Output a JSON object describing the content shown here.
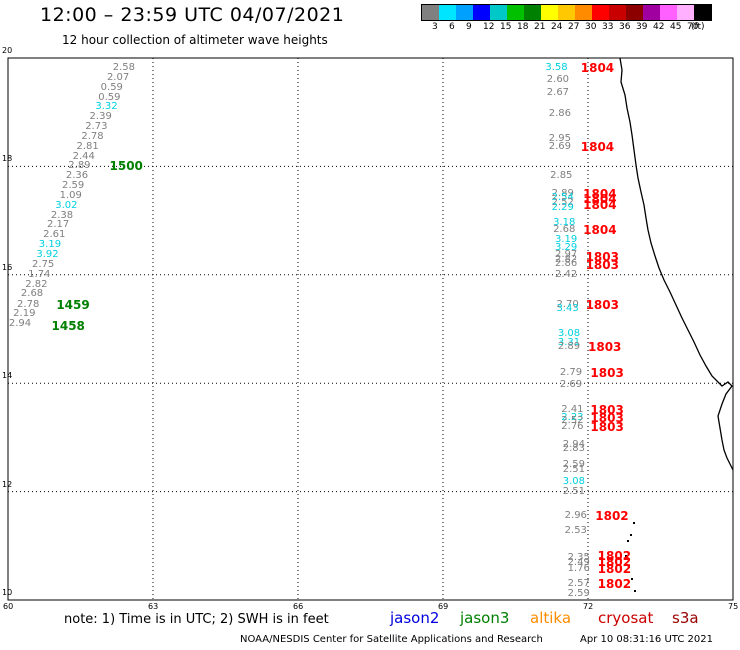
{
  "header": {
    "title": "12:00 – 23:59 UTC 04/07/2021",
    "subtitle": "12 hour collection of altimeter wave heights"
  },
  "legend": {
    "colors": [
      "#808080",
      "#00e5ff",
      "#00a0ff",
      "#0000ff",
      "#00c8c8",
      "#00c000",
      "#008000",
      "#ffff00",
      "#ffc800",
      "#ff8c00",
      "#ff0000",
      "#c80000",
      "#8c0000",
      "#a000a0",
      "#ff60ff",
      "#ffb0ff",
      "#000000"
    ],
    "labels": [
      "3",
      "6",
      "9",
      "12",
      "15",
      "18",
      "21",
      "24",
      "27",
      "30",
      "33",
      "36",
      "39",
      "42",
      "45",
      "70",
      "(ft)"
    ]
  },
  "axes": {
    "x_ticks": [
      "60",
      "63",
      "66",
      "69",
      "72",
      "75"
    ],
    "y_ticks": [
      "10",
      "12",
      "14",
      "16",
      "18",
      "20"
    ]
  },
  "chart_data": {
    "type": "scatter",
    "xlim": [
      60,
      75
    ],
    "ylim": [
      10,
      20
    ],
    "left_track": [
      {
        "x": 62.25,
        "y": 19.82,
        "v": "2.58",
        "c": "#808080"
      },
      {
        "x": 62.13,
        "y": 19.64,
        "v": "2.07",
        "c": "#808080"
      },
      {
        "x": 62.0,
        "y": 19.45,
        "v": "0.59",
        "c": "#808080"
      },
      {
        "x": 61.95,
        "y": 19.27,
        "v": "0.59",
        "c": "#808080"
      },
      {
        "x": 61.89,
        "y": 19.09,
        "v": "3.32",
        "c": "#00d0e0"
      },
      {
        "x": 61.77,
        "y": 18.91,
        "v": "2.39",
        "c": "#808080"
      },
      {
        "x": 61.68,
        "y": 18.73,
        "v": "2.73",
        "c": "#808080"
      },
      {
        "x": 61.6,
        "y": 18.55,
        "v": "2.78",
        "c": "#808080"
      },
      {
        "x": 61.5,
        "y": 18.36,
        "v": "2.81",
        "c": "#808080"
      },
      {
        "x": 61.42,
        "y": 18.18,
        "v": "2.44",
        "c": "#808080"
      },
      {
        "x": 61.33,
        "y": 18.0,
        "v": "2.89",
        "c": "#808080"
      },
      {
        "x": 61.28,
        "y": 17.82,
        "v": "2.36",
        "c": "#808080"
      },
      {
        "x": 61.2,
        "y": 17.64,
        "v": "2.59",
        "c": "#808080"
      },
      {
        "x": 61.15,
        "y": 17.45,
        "v": "1.09",
        "c": "#808080"
      },
      {
        "x": 61.06,
        "y": 17.27,
        "v": "3.02",
        "c": "#00d0e0"
      },
      {
        "x": 60.97,
        "y": 17.09,
        "v": "2.38",
        "c": "#808080"
      },
      {
        "x": 60.89,
        "y": 16.91,
        "v": "2.17",
        "c": "#808080"
      },
      {
        "x": 60.81,
        "y": 16.73,
        "v": "2.61",
        "c": "#808080"
      },
      {
        "x": 60.72,
        "y": 16.55,
        "v": "3.19",
        "c": "#00d0e0"
      },
      {
        "x": 60.67,
        "y": 16.36,
        "v": "3.92",
        "c": "#00d0e0"
      },
      {
        "x": 60.58,
        "y": 16.18,
        "v": "2.75",
        "c": "#808080"
      },
      {
        "x": 60.5,
        "y": 16.0,
        "v": "1.74",
        "c": "#808080"
      },
      {
        "x": 60.44,
        "y": 15.82,
        "v": "2.82",
        "c": "#808080"
      },
      {
        "x": 60.35,
        "y": 15.64,
        "v": "2.68",
        "c": "#808080"
      },
      {
        "x": 60.27,
        "y": 15.45,
        "v": "2.78",
        "c": "#808080"
      },
      {
        "x": 60.19,
        "y": 15.27,
        "v": "2.19",
        "c": "#808080"
      },
      {
        "x": 60.1,
        "y": 15.09,
        "v": "2.94",
        "c": "#808080"
      }
    ],
    "right_track": [
      {
        "x": 71.2,
        "y": 19.82,
        "v": "3.58",
        "c": "#00d0e0"
      },
      {
        "x": 71.23,
        "y": 19.6,
        "v": "2.60",
        "c": "#808080"
      },
      {
        "x": 71.23,
        "y": 19.36,
        "v": "2.67",
        "c": "#808080"
      },
      {
        "x": 71.27,
        "y": 18.96,
        "v": "2.86",
        "c": "#808080"
      },
      {
        "x": 71.27,
        "y": 18.5,
        "v": "2.95",
        "c": "#808080"
      },
      {
        "x": 71.27,
        "y": 18.36,
        "v": "2.69",
        "c": "#808080"
      },
      {
        "x": 71.3,
        "y": 17.82,
        "v": "2.85",
        "c": "#808080"
      },
      {
        "x": 71.33,
        "y": 17.5,
        "v": "2.89",
        "c": "#808080"
      },
      {
        "x": 71.33,
        "y": 17.41,
        "v": "2.54",
        "c": "#00d0e0"
      },
      {
        "x": 71.33,
        "y": 17.32,
        "v": "2.52",
        "c": "#808080"
      },
      {
        "x": 71.33,
        "y": 17.23,
        "v": "2.29",
        "c": "#00d0e0"
      },
      {
        "x": 71.36,
        "y": 16.95,
        "v": "3.18",
        "c": "#00d0e0"
      },
      {
        "x": 71.36,
        "y": 16.82,
        "v": "2.68",
        "c": "#808080"
      },
      {
        "x": 71.4,
        "y": 16.64,
        "v": "3.19",
        "c": "#00d0e0"
      },
      {
        "x": 71.4,
        "y": 16.5,
        "v": "3.29",
        "c": "#00d0e0"
      },
      {
        "x": 71.4,
        "y": 16.36,
        "v": "2.97",
        "c": "#808080"
      },
      {
        "x": 71.4,
        "y": 16.27,
        "v": "2.82",
        "c": "#808080"
      },
      {
        "x": 71.4,
        "y": 16.2,
        "v": "2.86",
        "c": "#808080"
      },
      {
        "x": 71.4,
        "y": 16.0,
        "v": "2.42",
        "c": "#808080"
      },
      {
        "x": 71.43,
        "y": 15.45,
        "v": "2.70",
        "c": "#808080"
      },
      {
        "x": 71.43,
        "y": 15.36,
        "v": "3.43",
        "c": "#00d0e0"
      },
      {
        "x": 71.46,
        "y": 14.91,
        "v": "3.08",
        "c": "#00d0e0"
      },
      {
        "x": 71.46,
        "y": 14.75,
        "v": "3.31",
        "c": "#00d0e0"
      },
      {
        "x": 71.46,
        "y": 14.66,
        "v": "2.89",
        "c": "#808080"
      },
      {
        "x": 71.5,
        "y": 14.18,
        "v": "2.79",
        "c": "#808080"
      },
      {
        "x": 71.5,
        "y": 13.96,
        "v": "2.69",
        "c": "#808080"
      },
      {
        "x": 71.53,
        "y": 13.5,
        "v": "2.41",
        "c": "#808080"
      },
      {
        "x": 71.53,
        "y": 13.36,
        "v": "2.23",
        "c": "#00d0e0"
      },
      {
        "x": 71.53,
        "y": 13.3,
        "v": "2.52",
        "c": "#808080"
      },
      {
        "x": 71.53,
        "y": 13.2,
        "v": "2.76",
        "c": "#808080"
      },
      {
        "x": 71.56,
        "y": 12.86,
        "v": "2.94",
        "c": "#808080"
      },
      {
        "x": 71.56,
        "y": 12.78,
        "v": "2.83",
        "c": "#808080"
      },
      {
        "x": 71.56,
        "y": 12.5,
        "v": "2.59",
        "c": "#808080"
      },
      {
        "x": 71.56,
        "y": 12.39,
        "v": "2.51",
        "c": "#808080"
      },
      {
        "x": 71.56,
        "y": 12.18,
        "v": "3.08",
        "c": "#00d0e0"
      },
      {
        "x": 71.56,
        "y": 12.0,
        "v": "2.51",
        "c": "#808080"
      },
      {
        "x": 71.6,
        "y": 11.55,
        "v": "2.96",
        "c": "#808080"
      },
      {
        "x": 71.6,
        "y": 11.27,
        "v": "2.53",
        "c": "#808080"
      },
      {
        "x": 71.66,
        "y": 10.77,
        "v": "2.35",
        "c": "#808080"
      },
      {
        "x": 71.66,
        "y": 10.68,
        "v": "2.49",
        "c": "#808080"
      },
      {
        "x": 71.66,
        "y": 10.57,
        "v": "1.76",
        "c": "#808080"
      },
      {
        "x": 71.66,
        "y": 10.3,
        "v": "2.57",
        "c": "#808080"
      },
      {
        "x": 71.66,
        "y": 10.11,
        "v": "2.59",
        "c": "#808080"
      }
    ],
    "time_labels": [
      {
        "x": 62.1,
        "y": 18.0,
        "t": "1500",
        "c": "#008000"
      },
      {
        "x": 61.0,
        "y": 15.45,
        "t": "1459",
        "c": "#008000"
      },
      {
        "x": 60.9,
        "y": 15.06,
        "t": "1458",
        "c": "#008000"
      },
      {
        "x": 71.85,
        "y": 19.82,
        "t": "1804",
        "c": "#ff0000"
      },
      {
        "x": 71.85,
        "y": 18.36,
        "t": "1804",
        "c": "#ff0000"
      },
      {
        "x": 71.9,
        "y": 17.5,
        "t": "1804",
        "c": "#ff0000"
      },
      {
        "x": 71.9,
        "y": 17.39,
        "t": "1804",
        "c": "#ff0000"
      },
      {
        "x": 71.9,
        "y": 17.28,
        "t": "1804",
        "c": "#ff0000"
      },
      {
        "x": 71.9,
        "y": 16.82,
        "t": "1804",
        "c": "#ff0000"
      },
      {
        "x": 71.95,
        "y": 16.32,
        "t": "1803",
        "c": "#ff0000"
      },
      {
        "x": 71.95,
        "y": 16.18,
        "t": "1803",
        "c": "#ff0000"
      },
      {
        "x": 71.95,
        "y": 15.45,
        "t": "1803",
        "c": "#ff0000"
      },
      {
        "x": 72.0,
        "y": 14.66,
        "t": "1803",
        "c": "#ff0000"
      },
      {
        "x": 72.05,
        "y": 14.18,
        "t": "1803",
        "c": "#ff0000"
      },
      {
        "x": 72.05,
        "y": 13.5,
        "t": "1803",
        "c": "#ff0000"
      },
      {
        "x": 72.05,
        "y": 13.36,
        "t": "1803",
        "c": "#ff0000"
      },
      {
        "x": 72.05,
        "y": 13.2,
        "t": "1803",
        "c": "#ff0000"
      },
      {
        "x": 72.15,
        "y": 11.55,
        "t": "1802",
        "c": "#ff0000"
      },
      {
        "x": 72.2,
        "y": 10.82,
        "t": "1802",
        "c": "#ff0000"
      },
      {
        "x": 72.2,
        "y": 10.7,
        "t": "1802",
        "c": "#ff0000"
      },
      {
        "x": 72.2,
        "y": 10.57,
        "t": "1802",
        "c": "#ff0000"
      },
      {
        "x": 72.2,
        "y": 10.3,
        "t": "1802",
        "c": "#ff0000"
      }
    ]
  },
  "footer": {
    "note": "note: 1) Time is in UTC; 2) SWH is in feet",
    "satellites": [
      {
        "name": "jason2",
        "color": "#0000dd"
      },
      {
        "name": "jason3",
        "color": "#008000"
      },
      {
        "name": "altika",
        "color": "#ff8c00"
      },
      {
        "name": "cryosat",
        "color": "#cc0000"
      },
      {
        "name": "s3a",
        "color": "#990000"
      }
    ],
    "credit": "NOAA/NESDIS Center for Satellite Applications and Research",
    "timestamp": "Apr 10 08:31:16 UTC 2021"
  }
}
